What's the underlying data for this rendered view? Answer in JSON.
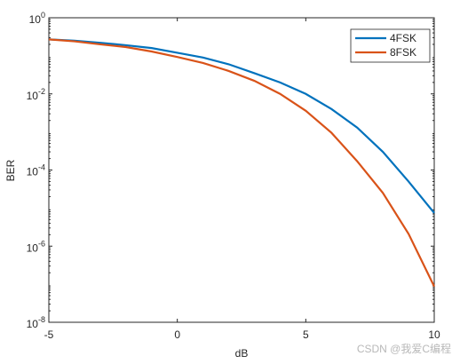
{
  "chart_data": {
    "type": "line",
    "x_label": "dB",
    "y_label": "BER",
    "x": [
      -5,
      -4,
      -3,
      -2,
      -1,
      0,
      1,
      2,
      3,
      4,
      5,
      6,
      7,
      8,
      9,
      10
    ],
    "series": [
      {
        "name": "4FSK",
        "color": "#0072bd",
        "values": [
          0.27,
          0.25,
          0.22,
          0.19,
          0.16,
          0.12,
          0.09,
          0.06,
          0.035,
          0.02,
          0.01,
          0.004,
          0.0013,
          0.0003,
          5e-05,
          7.4e-06
        ]
      },
      {
        "name": "8FSK",
        "color": "#d95319",
        "values": [
          0.27,
          0.24,
          0.2,
          0.17,
          0.13,
          0.093,
          0.065,
          0.04,
          0.022,
          0.01,
          0.0036,
          0.00095,
          0.00017,
          2.5e-05,
          2.1e-06,
          8.7e-08
        ]
      }
    ],
    "xlim": [
      -5,
      10
    ],
    "xticks": [
      -5,
      0,
      5,
      10
    ],
    "ylim": [
      1e-08,
      1
    ],
    "log_y": true,
    "yticks": [
      {
        "value": 1e-08,
        "label": "10^-8"
      },
      {
        "value": 1e-06,
        "label": "10^-6"
      },
      {
        "value": 0.0001,
        "label": "10^-4"
      },
      {
        "value": 0.01,
        "label": "10^-2"
      },
      {
        "value": 1,
        "label": "10^0"
      }
    ],
    "legend": "upper right",
    "watermark": "CSDN @我爱C编程"
  }
}
